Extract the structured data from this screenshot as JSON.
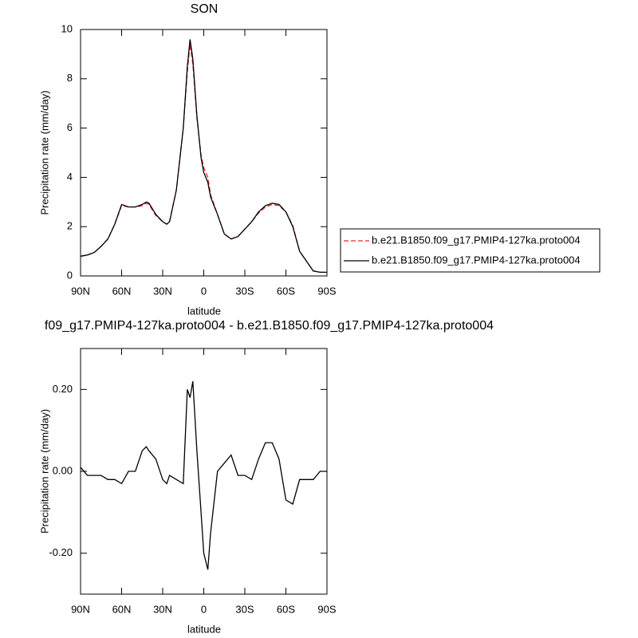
{
  "chart_data": [
    {
      "type": "line",
      "title": "SON",
      "xlabel": "latitude",
      "ylabel": "Precipitation rate (mm/day)",
      "legend": "outside-right",
      "xlim": [
        90,
        -90
      ],
      "xticks": [
        {
          "value": 90,
          "label": "90N"
        },
        {
          "value": 60,
          "label": "60N"
        },
        {
          "value": 30,
          "label": "30N"
        },
        0,
        {
          "value": -30,
          "label": "30S"
        },
        {
          "value": -60,
          "label": "60S"
        },
        {
          "value": -90,
          "label": "90S"
        }
      ],
      "ylim": [
        0,
        10
      ],
      "yticks": [
        0,
        2,
        4,
        6,
        8,
        10
      ],
      "x": [
        90,
        85,
        80,
        75,
        70,
        65,
        60,
        55,
        50,
        45,
        42,
        40,
        35,
        30,
        27,
        25,
        20,
        15,
        12,
        10,
        8,
        5,
        2,
        0,
        -3,
        -5,
        -10,
        -15,
        -20,
        -25,
        -30,
        -35,
        -40,
        -45,
        -50,
        -55,
        -60,
        -65,
        -70,
        -75,
        -80,
        -85,
        -90
      ],
      "series": [
        {
          "name": "b.e21.B1850.f09_g17.PMIP4-127ka.proto004",
          "color": "#e8262b",
          "dash": true,
          "values": [
            0.8,
            0.85,
            0.95,
            1.2,
            1.5,
            2.1,
            2.85,
            2.8,
            2.8,
            2.85,
            2.95,
            2.9,
            2.45,
            2.2,
            2.1,
            2.2,
            3.5,
            6.0,
            8.3,
            9.4,
            8.6,
            6.4,
            4.9,
            4.4,
            4.0,
            3.3,
            2.5,
            1.7,
            1.5,
            1.6,
            1.9,
            2.2,
            2.55,
            2.8,
            2.9,
            2.85,
            2.6,
            2.05,
            1.0,
            0.6,
            0.2,
            0.15,
            0.15
          ]
        },
        {
          "name": "b.e21.B1850.f09_g17.PMIP4-127ka.proto004",
          "color": "#000000",
          "dash": false,
          "values": [
            0.8,
            0.85,
            0.95,
            1.2,
            1.5,
            2.1,
            2.9,
            2.8,
            2.8,
            2.9,
            3.0,
            2.95,
            2.5,
            2.2,
            2.1,
            2.2,
            3.5,
            6.0,
            8.5,
            9.6,
            8.8,
            6.5,
            4.8,
            4.2,
            3.8,
            3.2,
            2.5,
            1.7,
            1.5,
            1.6,
            1.9,
            2.2,
            2.6,
            2.85,
            2.95,
            2.9,
            2.6,
            2.0,
            1.0,
            0.6,
            0.2,
            0.15,
            0.15
          ]
        }
      ]
    },
    {
      "type": "line",
      "title": "f09_g17.PMIP4-127ka.proto004 - b.e21.B1850.f09_g17.PMIP4-127ka.proto004",
      "xlabel": "latitude",
      "ylabel": "Precipitation rate (mm/day)",
      "xlim": [
        90,
        -90
      ],
      "xticks": [
        {
          "value": 90,
          "label": "90N"
        },
        {
          "value": 60,
          "label": "60N"
        },
        {
          "value": 30,
          "label": "30N"
        },
        0,
        {
          "value": -30,
          "label": "30S"
        },
        {
          "value": -60,
          "label": "60S"
        },
        {
          "value": -90,
          "label": "90S"
        }
      ],
      "ylim": [
        -0.3,
        0.3
      ],
      "yticks": [
        {
          "value": -0.2,
          "label": "-0.20"
        },
        {
          "value": 0,
          "label": "0.00"
        },
        {
          "value": 0.2,
          "label": "0.20"
        }
      ],
      "x": [
        90,
        85,
        80,
        75,
        70,
        65,
        60,
        55,
        50,
        45,
        42,
        40,
        35,
        30,
        27,
        25,
        20,
        15,
        12,
        10,
        8,
        5,
        2,
        0,
        -3,
        -5,
        -10,
        -15,
        -20,
        -25,
        -30,
        -35,
        -40,
        -45,
        -50,
        -55,
        -60,
        -65,
        -70,
        -75,
        -80,
        -85,
        -90
      ],
      "series": [
        {
          "color": "#000000",
          "dash": false,
          "values": [
            0.01,
            -0.01,
            -0.01,
            -0.01,
            -0.02,
            -0.02,
            -0.03,
            0.0,
            0.0,
            0.05,
            0.06,
            0.05,
            0.03,
            -0.02,
            -0.03,
            -0.01,
            -0.02,
            -0.03,
            0.2,
            0.18,
            0.22,
            0.05,
            -0.1,
            -0.2,
            -0.24,
            -0.15,
            0.0,
            0.02,
            0.04,
            -0.01,
            -0.01,
            -0.02,
            0.03,
            0.07,
            0.07,
            0.03,
            -0.07,
            -0.08,
            -0.02,
            -0.02,
            -0.02,
            0.0,
            0.0
          ]
        }
      ]
    }
  ]
}
